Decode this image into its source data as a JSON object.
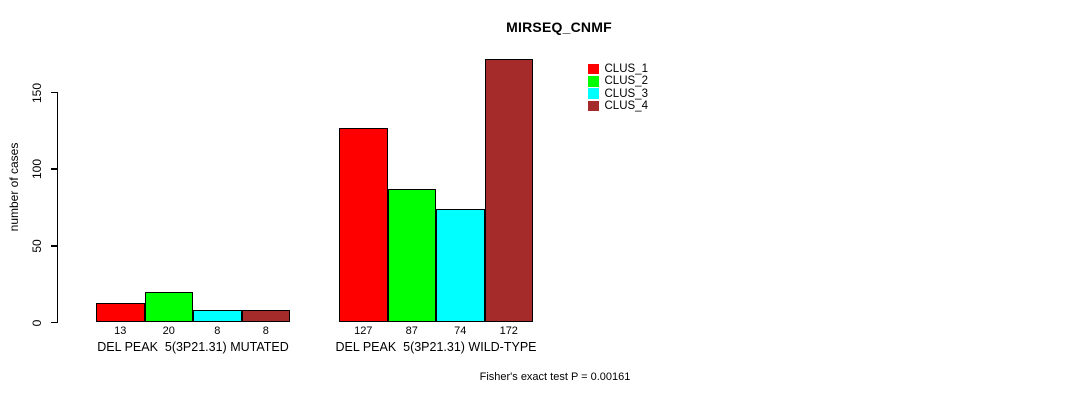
{
  "chart_data": {
    "type": "bar",
    "title": "MIRSEQ_CNMF",
    "xlabel": "",
    "ylabel": "number of cases",
    "ylim": [
      0,
      175
    ],
    "yticks": [
      0,
      50,
      100,
      150
    ],
    "grid": false,
    "legend_position": "top-right-inside",
    "categories": [
      "DEL PEAK  5(3P21.31) MUTATED",
      "DEL PEAK  5(3P21.31) WILD-TYPE"
    ],
    "series": [
      {
        "name": "CLUS_1",
        "color": "#FF0000",
        "values": [
          13,
          127
        ]
      },
      {
        "name": "CLUS_2",
        "color": "#00FF00",
        "values": [
          20,
          87
        ]
      },
      {
        "name": "CLUS_3",
        "color": "#00FFFF",
        "values": [
          8,
          74
        ]
      },
      {
        "name": "CLUS_4",
        "color": "#A52A2A",
        "values": [
          8,
          172
        ]
      }
    ],
    "bar_value_labels": [
      [
        13,
        20,
        8,
        8
      ],
      [
        127,
        87,
        74,
        172
      ]
    ],
    "annotation": "Fisher's exact test P = 0.00161"
  },
  "colors": {
    "background": "#FFFFFF",
    "axis": "#000000",
    "bar_border": "#000000"
  }
}
